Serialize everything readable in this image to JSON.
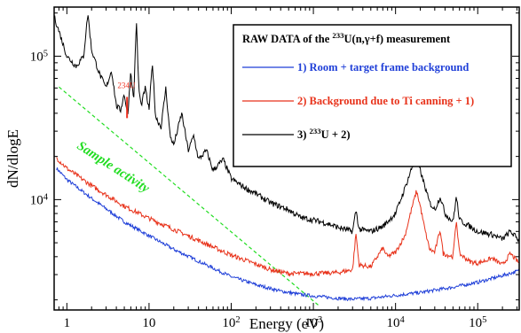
{
  "chart_data": {
    "type": "line",
    "title": "",
    "xlabel": "Energy (eV)",
    "ylabel": "dN/dlogE",
    "x_scale": "log",
    "y_scale": "log",
    "xlim": [
      0.7,
      320000
    ],
    "ylim": [
      1700,
      220000
    ],
    "x_ticks": [
      {
        "value": 1,
        "label": "1"
      },
      {
        "value": 10,
        "label": "10"
      },
      {
        "value": 100,
        "label": "10",
        "sup": "2"
      },
      {
        "value": 1000,
        "label": "10",
        "sup": "3"
      },
      {
        "value": 10000,
        "label": "10",
        "sup": "4"
      },
      {
        "value": 100000,
        "label": "10",
        "sup": "5"
      }
    ],
    "y_ticks": [
      {
        "value": 10000,
        "label": "10",
        "sup": "4"
      },
      {
        "value": 100000,
        "label": "10",
        "sup": "5"
      }
    ],
    "legend": {
      "placement": "top-right",
      "title_parts": [
        {
          "t": "RAW DATA of the "
        },
        {
          "t": "233",
          "sup": true
        },
        {
          "t": "U(n,γ+f) measurement"
        }
      ],
      "entries": [
        {
          "series": 0,
          "parts": [
            {
              "t": "1) Room + target frame background"
            }
          ]
        },
        {
          "series": 1,
          "parts": [
            {
              "t": "2) Background due to Ti canning + 1)"
            }
          ]
        },
        {
          "series": 2,
          "parts": [
            {
              "t": "3) "
            },
            {
              "t": "233",
              "sup": true
            },
            {
              "t": "U + 2)"
            }
          ]
        }
      ]
    },
    "annotations": [
      {
        "text": "Sample activity",
        "color": "#22dd22",
        "x": 1.3,
        "y": 23000,
        "angle": 33
      },
      {
        "text": "234U",
        "color": "#ee3322",
        "x": 5.3,
        "y": 60000
      }
    ],
    "reference_line": {
      "name": "sample-activity",
      "color": "#22dd22",
      "dashed": true,
      "points": [
        [
          0.8,
          61000
        ],
        [
          1200,
          1800
        ]
      ]
    },
    "series": [
      {
        "color": "#1f3fd8",
        "points": [
          [
            0.75,
            16500
          ],
          [
            1,
            13800
          ],
          [
            2,
            10200
          ],
          [
            5,
            7000
          ],
          [
            10,
            5600
          ],
          [
            20,
            4500
          ],
          [
            50,
            3500
          ],
          [
            100,
            2900
          ],
          [
            200,
            2550
          ],
          [
            400,
            2300
          ],
          [
            700,
            2180
          ],
          [
            1000,
            2130
          ],
          [
            2000,
            2050
          ],
          [
            3000,
            2020
          ],
          [
            5000,
            2050
          ],
          [
            10000,
            2150
          ],
          [
            20000,
            2250
          ],
          [
            50000,
            2450
          ],
          [
            100000,
            2650
          ],
          [
            200000,
            2950
          ],
          [
            320000,
            3200
          ]
        ]
      },
      {
        "color": "#e8321a",
        "points": [
          [
            0.75,
            19500
          ],
          [
            1,
            16500
          ],
          [
            2,
            12500
          ],
          [
            5,
            9000
          ],
          [
            10,
            7400
          ],
          [
            20,
            6200
          ],
          [
            50,
            4900
          ],
          [
            100,
            4100
          ],
          [
            200,
            3550
          ],
          [
            300,
            3250
          ],
          [
            500,
            3050
          ],
          [
            1000,
            3050
          ],
          [
            2000,
            3100
          ],
          [
            3000,
            3250
          ],
          [
            3300,
            5800
          ],
          [
            3600,
            3500
          ],
          [
            5000,
            3400
          ],
          [
            7000,
            4600
          ],
          [
            8000,
            4000
          ],
          [
            10000,
            4300
          ],
          [
            13000,
            5600
          ],
          [
            16000,
            9000
          ],
          [
            18000,
            11500
          ],
          [
            20000,
            9000
          ],
          [
            23000,
            6000
          ],
          [
            26000,
            4500
          ],
          [
            30000,
            4300
          ],
          [
            35000,
            6200
          ],
          [
            38000,
            4200
          ],
          [
            50000,
            4000
          ],
          [
            55000,
            7200
          ],
          [
            60000,
            4200
          ],
          [
            80000,
            3700
          ],
          [
            100000,
            3600
          ],
          [
            150000,
            3900
          ],
          [
            200000,
            3500
          ],
          [
            250000,
            4200
          ],
          [
            320000,
            3600
          ]
        ]
      },
      {
        "color": "#000000",
        "points": [
          [
            0.7,
            190000
          ],
          [
            0.8,
            150000
          ],
          [
            1,
            100000
          ],
          [
            1.3,
            85000
          ],
          [
            1.6,
            100000
          ],
          [
            1.8,
            200000
          ],
          [
            2,
            110000
          ],
          [
            2.5,
            75000
          ],
          [
            3,
            60000
          ],
          [
            3.5,
            80000
          ],
          [
            4,
            45000
          ],
          [
            4.5,
            42000
          ],
          [
            5,
            55000
          ],
          [
            5.5,
            38000
          ],
          [
            6,
            80000
          ],
          [
            6.5,
            48000
          ],
          [
            7,
            180000
          ],
          [
            7.5,
            60000
          ],
          [
            8,
            45000
          ],
          [
            9,
            60000
          ],
          [
            10,
            42000
          ],
          [
            11,
            90000
          ],
          [
            12,
            38000
          ],
          [
            14,
            32000
          ],
          [
            16,
            60000
          ],
          [
            18,
            28000
          ],
          [
            20,
            24000
          ],
          [
            25,
            40000
          ],
          [
            30,
            22000
          ],
          [
            35,
            28000
          ],
          [
            40,
            19000
          ],
          [
            50,
            22000
          ],
          [
            60,
            16000
          ],
          [
            80,
            19000
          ],
          [
            100,
            14000
          ],
          [
            150,
            12000
          ],
          [
            200,
            11000
          ],
          [
            300,
            9500
          ],
          [
            500,
            8500
          ],
          [
            700,
            7500
          ],
          [
            1000,
            7200
          ],
          [
            1500,
            6800
          ],
          [
            2000,
            6400
          ],
          [
            3000,
            6000
          ],
          [
            3300,
            8500
          ],
          [
            3600,
            6200
          ],
          [
            5000,
            6000
          ],
          [
            7000,
            6500
          ],
          [
            10000,
            8000
          ],
          [
            13000,
            12000
          ],
          [
            16000,
            17000
          ],
          [
            18000,
            18500
          ],
          [
            20000,
            16000
          ],
          [
            23000,
            12000
          ],
          [
            26000,
            9500
          ],
          [
            30000,
            8500
          ],
          [
            35000,
            10500
          ],
          [
            40000,
            8000
          ],
          [
            50000,
            7000
          ],
          [
            55000,
            10500
          ],
          [
            60000,
            7200
          ],
          [
            80000,
            6500
          ],
          [
            100000,
            6000
          ],
          [
            150000,
            5700
          ],
          [
            200000,
            5300
          ],
          [
            250000,
            6000
          ],
          [
            320000,
            5200
          ]
        ]
      }
    ]
  }
}
